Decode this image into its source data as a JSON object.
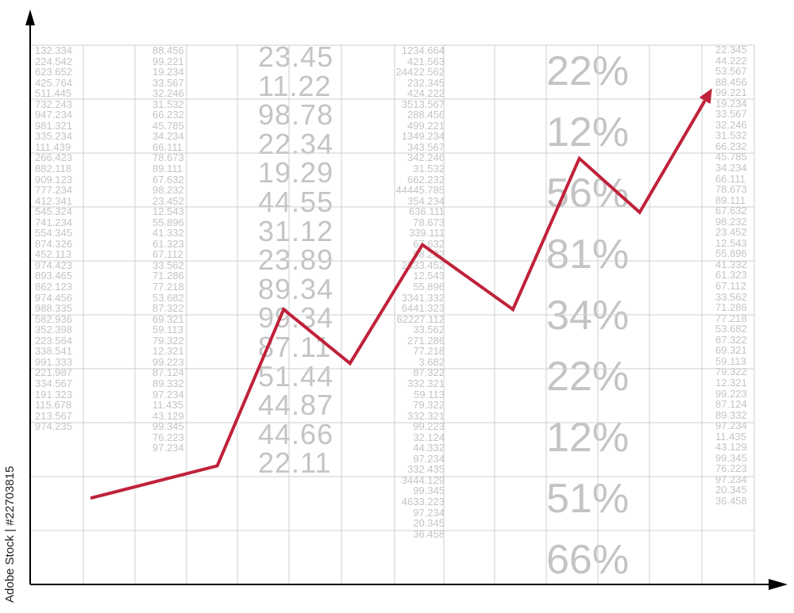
{
  "chart_data": {
    "type": "line",
    "title": "",
    "xlabel": "",
    "ylabel": "",
    "xlim": [
      0,
      12
    ],
    "ylim": [
      0,
      10
    ],
    "grid": true,
    "axis_arrows": true,
    "series": [
      {
        "color": "#c0213a",
        "x": [
          1,
          3.1,
          4.2,
          5.3,
          6.5,
          8.0,
          9.1,
          10.1,
          11.3
        ],
        "y": [
          1.6,
          2.2,
          5.1,
          4.1,
          6.3,
          5.1,
          7.9,
          6.9,
          9.2
        ]
      }
    ],
    "background_columns": [
      {
        "values": [
          "132.334",
          "224.542",
          "623.652",
          "425.764",
          "511.445",
          "732.243",
          "947.234",
          "981.321",
          "335.234",
          "111.439",
          "266.423",
          "882.118",
          "909.123",
          "777.234",
          "412.341",
          "545.324",
          "741.234",
          "554.345",
          "874.326",
          "452.113",
          "974.423",
          "893.465",
          "862.123",
          "974.456",
          "988.335",
          "582.936",
          "352.398",
          "223.564",
          "338.541",
          "991.333",
          "221.987",
          "334.567",
          "191.323",
          "115.678",
          "213.567",
          "974.235"
        ]
      },
      {
        "values": [
          "88.456",
          "99.221",
          "19.234",
          "33.567",
          "32.246",
          "31.532",
          "66.232",
          "45.785",
          "34.234",
          "66.111",
          "78.673",
          "89.111",
          "67.632",
          "98.232",
          "23.452",
          "12.543",
          "55.896",
          "41.332",
          "61.323",
          "67.112",
          "33.562",
          "71.286",
          "77.218",
          "53.682",
          "87.322",
          "69.321",
          "59.113",
          "79.322",
          "12.321",
          "99.223",
          "87.124",
          "89.332",
          "97.234",
          "11.435",
          "43.129",
          "99.345",
          "76.223",
          "97.234"
        ]
      },
      {
        "values": [
          "23.45",
          "11.22",
          "98.78",
          "22.34",
          "19.29",
          "44.55",
          "31.12",
          "23.89",
          "89.34",
          "99.34",
          "87.11",
          "51.44",
          "44.87",
          "44.66",
          "22.11"
        ]
      },
      {
        "values": [
          "1234.664",
          "421.563",
          "24422.562",
          "232.345",
          "424.222",
          "3513.567",
          "288.456",
          "499.221",
          "1349.234",
          "343.567",
          "342.246",
          "31.532",
          "662.232",
          "44445.785",
          "354.234",
          "636.111",
          "78.673",
          "339.111",
          "67.632",
          "98.232",
          "2333.452",
          "12.543",
          "55.896",
          "3341.332",
          "6441.323",
          "62227.112",
          "33.562",
          "271.286",
          "77.218",
          "3.682",
          "87.322",
          "332.321",
          "59.113",
          "79.322",
          "332.321",
          "99.223",
          "32.124",
          "44.332",
          "97.234",
          "332.435",
          "3444.129",
          "99.345",
          "4633.223",
          "97.234",
          "20.345",
          "36.458"
        ]
      },
      {
        "values": [
          "22%",
          "12%",
          "56%",
          "81%",
          "34%",
          "22%",
          "12%",
          "51%",
          "66%"
        ]
      },
      {
        "values": [
          "22.345",
          "44.222",
          "53.567",
          "88.456",
          "99.221",
          "19.234",
          "33.567",
          "32.246",
          "31.532",
          "66.232",
          "45.785",
          "34.234",
          "66.111",
          "78.673",
          "89.111",
          "67.632",
          "98.232",
          "23.452",
          "12.543",
          "55.896",
          "41.332",
          "61.323",
          "67.112",
          "33.562",
          "71.286",
          "77.218",
          "53.682",
          "87.322",
          "69.321",
          "59.113",
          "79.322",
          "12.321",
          "99.223",
          "87.124",
          "89.332",
          "97.234",
          "11.435",
          "43.129",
          "99.345",
          "76.223",
          "97.234",
          "20.345",
          "36.458"
        ]
      }
    ]
  },
  "credit": "Adobe Stock | #22703815"
}
